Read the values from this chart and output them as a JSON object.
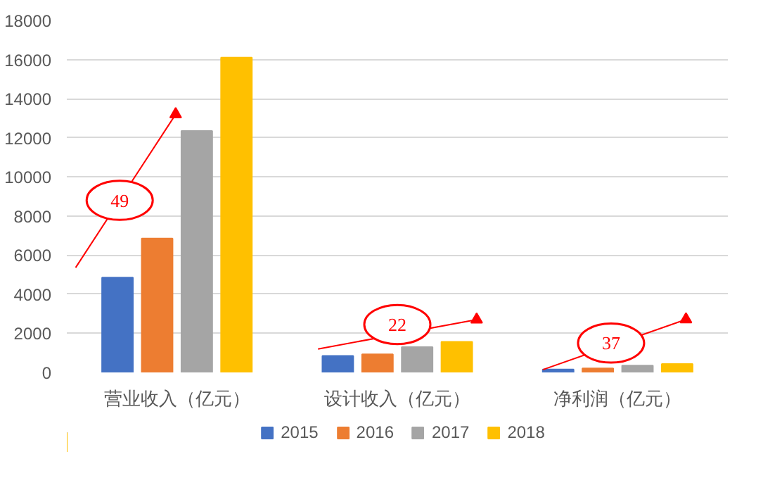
{
  "chart_data": {
    "type": "bar",
    "categories": [
      "营业收入（亿元）",
      "设计收入（亿元）",
      "净利润（亿元）"
    ],
    "series": [
      {
        "name": "2015",
        "color": "#4472c4",
        "values": [
          4850,
          850,
          150
        ]
      },
      {
        "name": "2016",
        "color": "#ed7d31",
        "values": [
          6850,
          930,
          210
        ]
      },
      {
        "name": "2017",
        "color": "#a5a5a5",
        "values": [
          12350,
          1300,
          350
        ]
      },
      {
        "name": "2018",
        "color": "#ffc000",
        "values": [
          16100,
          1570,
          430
        ]
      }
    ],
    "ylim": [
      0,
      18000
    ],
    "yticks": [
      0,
      2000,
      4000,
      6000,
      8000,
      10000,
      12000,
      14000,
      16000,
      18000
    ],
    "grid": "y",
    "legend": "bottom",
    "annotations": [
      "49",
      "22",
      "37"
    ]
  }
}
